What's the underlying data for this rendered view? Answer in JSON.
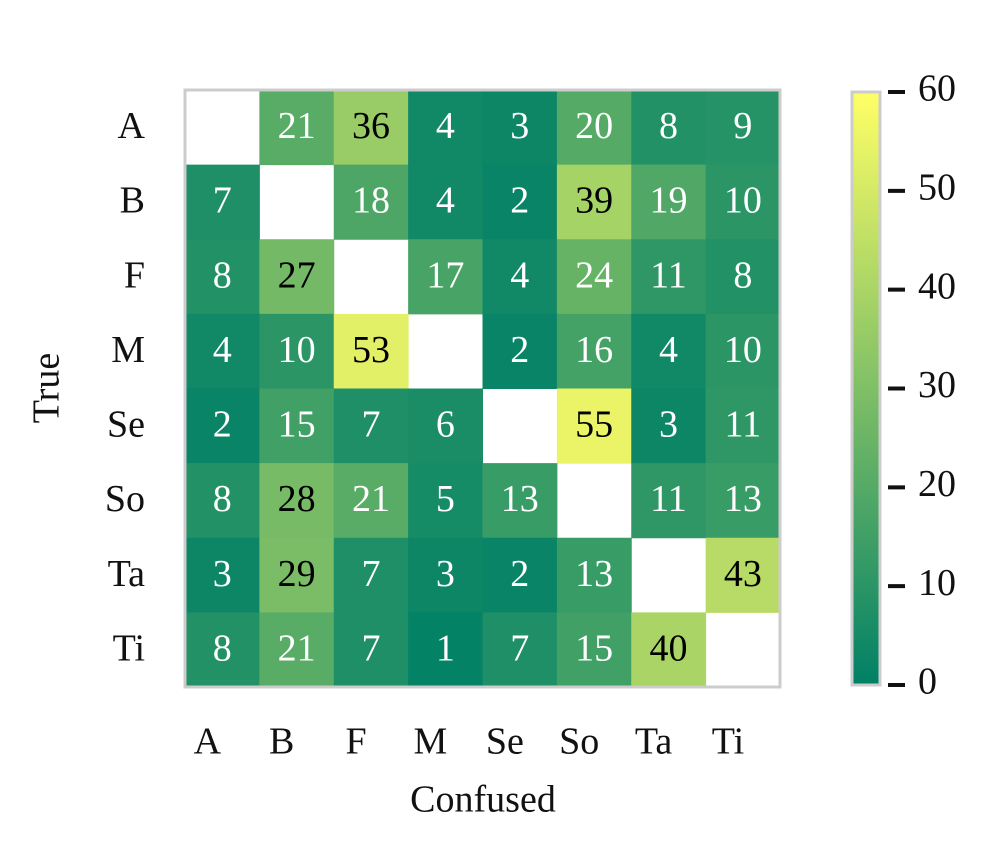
{
  "chart_data": {
    "type": "heatmap",
    "x_label": "Confused",
    "y_label": "True",
    "x_categories": [
      "A",
      "B",
      "F",
      "M",
      "Se",
      "So",
      "Ta",
      "Ti"
    ],
    "y_categories": [
      "A",
      "B",
      "F",
      "M",
      "Se",
      "So",
      "Ta",
      "Ti"
    ],
    "values": [
      [
        null,
        21,
        36,
        4,
        3,
        20,
        8,
        9
      ],
      [
        7,
        null,
        18,
        4,
        2,
        39,
        19,
        10
      ],
      [
        8,
        27,
        null,
        17,
        4,
        24,
        11,
        8
      ],
      [
        4,
        10,
        53,
        null,
        2,
        16,
        4,
        10
      ],
      [
        2,
        15,
        7,
        6,
        null,
        55,
        3,
        11
      ],
      [
        8,
        28,
        21,
        5,
        13,
        null,
        11,
        13
      ],
      [
        3,
        29,
        7,
        3,
        2,
        13,
        null,
        43
      ],
      [
        8,
        21,
        7,
        1,
        7,
        15,
        40,
        null
      ]
    ],
    "colormap": [
      "#008066",
      "#ffff66"
    ],
    "clim": [
      0,
      60
    ],
    "cticks": [
      0,
      10,
      20,
      30,
      40,
      50,
      60
    ]
  }
}
